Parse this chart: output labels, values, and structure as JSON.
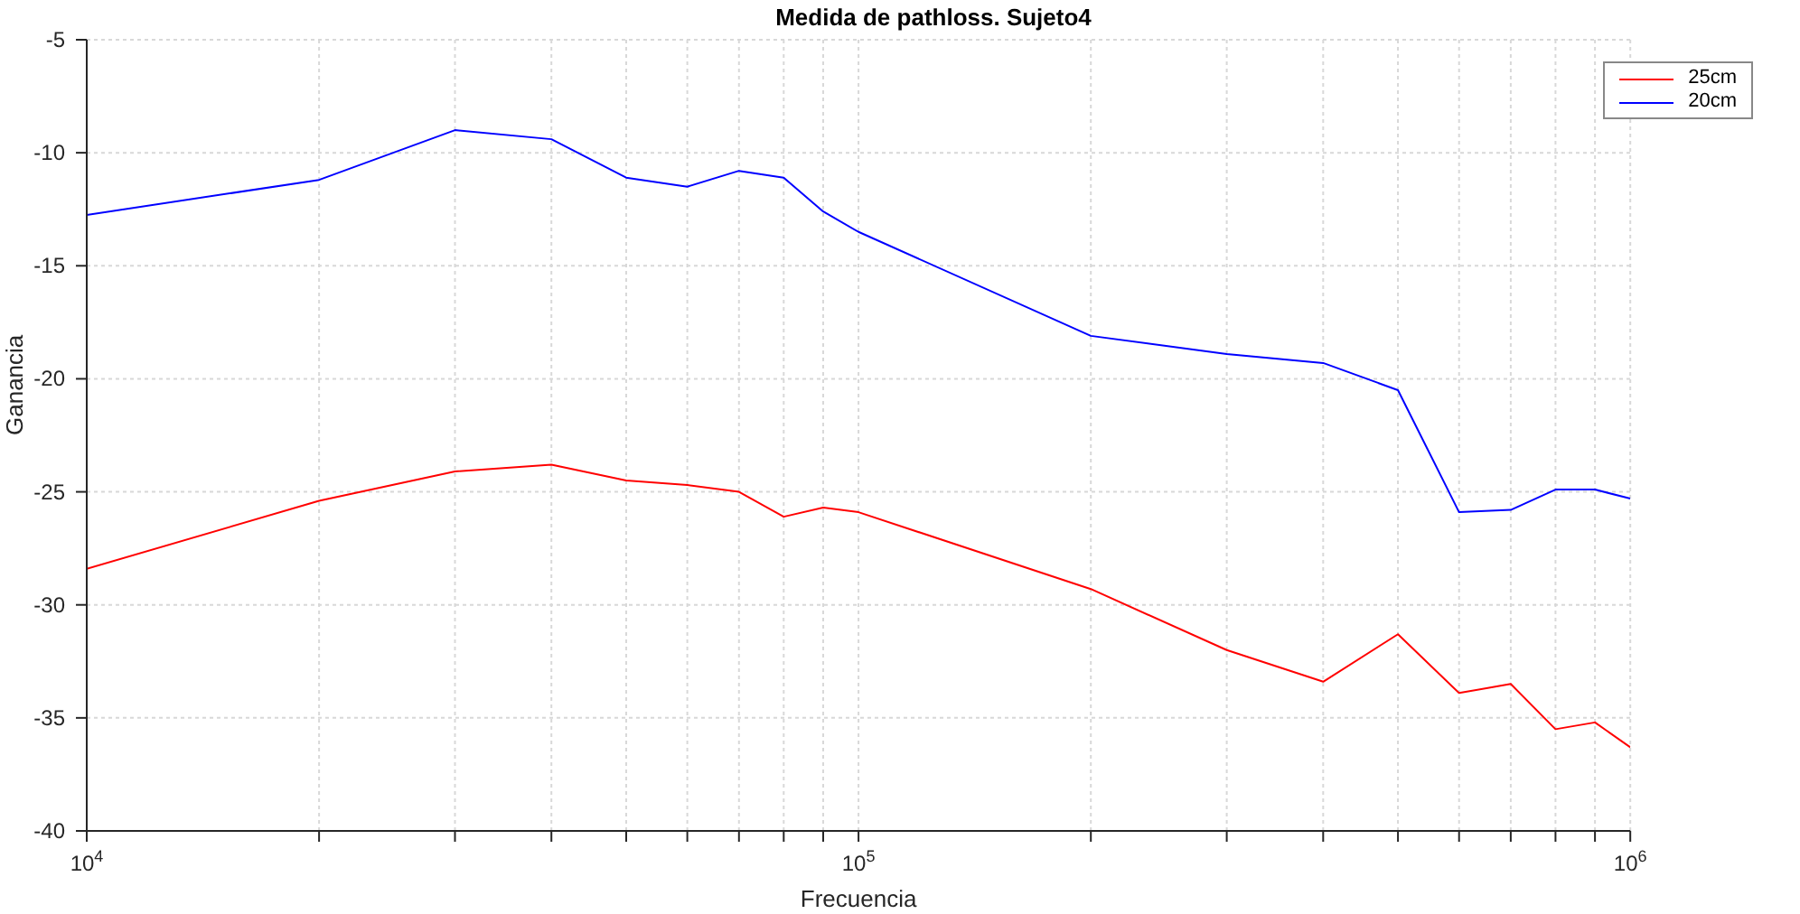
{
  "chart_data": {
    "type": "line",
    "title": "Medida de pathloss. Sujeto4",
    "xlabel": "Frecuencia",
    "ylabel": "Ganancia",
    "log": "x",
    "x": [
      10000,
      20000,
      30000,
      40000,
      50000,
      60000,
      70000,
      80000,
      90000,
      100000,
      200000,
      300000,
      400000,
      500000,
      600000,
      700000,
      800000,
      900000,
      1000000
    ],
    "series": [
      {
        "name": "25cm",
        "color": "#ff0000",
        "values": [
          -28.4,
          -25.4,
          -24.1,
          -23.8,
          -24.5,
          -24.7,
          -25.0,
          -26.1,
          -25.7,
          -25.9,
          -29.3,
          -32.0,
          -33.4,
          -31.3,
          -33.9,
          -33.5,
          -35.5,
          -35.2,
          -36.3
        ]
      },
      {
        "name": "20cm",
        "color": "#0000ff",
        "values": [
          -12.75,
          -11.2,
          -9.0,
          -9.4,
          -11.1,
          -11.5,
          -10.8,
          -11.1,
          -12.6,
          -13.5,
          -18.1,
          -18.9,
          -19.3,
          -20.5,
          -25.9,
          -25.8,
          -24.9,
          -24.9,
          -25.3
        ]
      }
    ],
    "xlim": [
      10000,
      1000000
    ],
    "xticks": [
      {
        "value": 10000,
        "label": "10$^{4}$"
      },
      {
        "value": 20000,
        "label": null
      },
      {
        "value": 30000,
        "label": null
      },
      {
        "value": 40000,
        "label": null
      },
      {
        "value": 50000,
        "label": null
      },
      {
        "value": 60000,
        "label": null
      },
      {
        "value": 70000,
        "label": null
      },
      {
        "value": 80000,
        "label": null
      },
      {
        "value": 90000,
        "label": null
      },
      {
        "value": 100000,
        "label": "10$^{5}$"
      },
      {
        "value": 200000,
        "label": null
      },
      {
        "value": 300000,
        "label": null
      },
      {
        "value": 400000,
        "label": null
      },
      {
        "value": 500000,
        "label": null
      },
      {
        "value": 600000,
        "label": null
      },
      {
        "value": 700000,
        "label": null
      },
      {
        "value": 800000,
        "label": null
      },
      {
        "value": 900000,
        "label": null
      },
      {
        "value": 1000000,
        "label": "10$^{6}$"
      }
    ],
    "ylim": [
      -40,
      -5
    ],
    "yticks": [
      -40,
      -35,
      -30,
      -25,
      -20,
      -15,
      -10,
      -5
    ],
    "grid": true,
    "legend": "top right",
    "marker": "none",
    "line_style": "solid"
  }
}
